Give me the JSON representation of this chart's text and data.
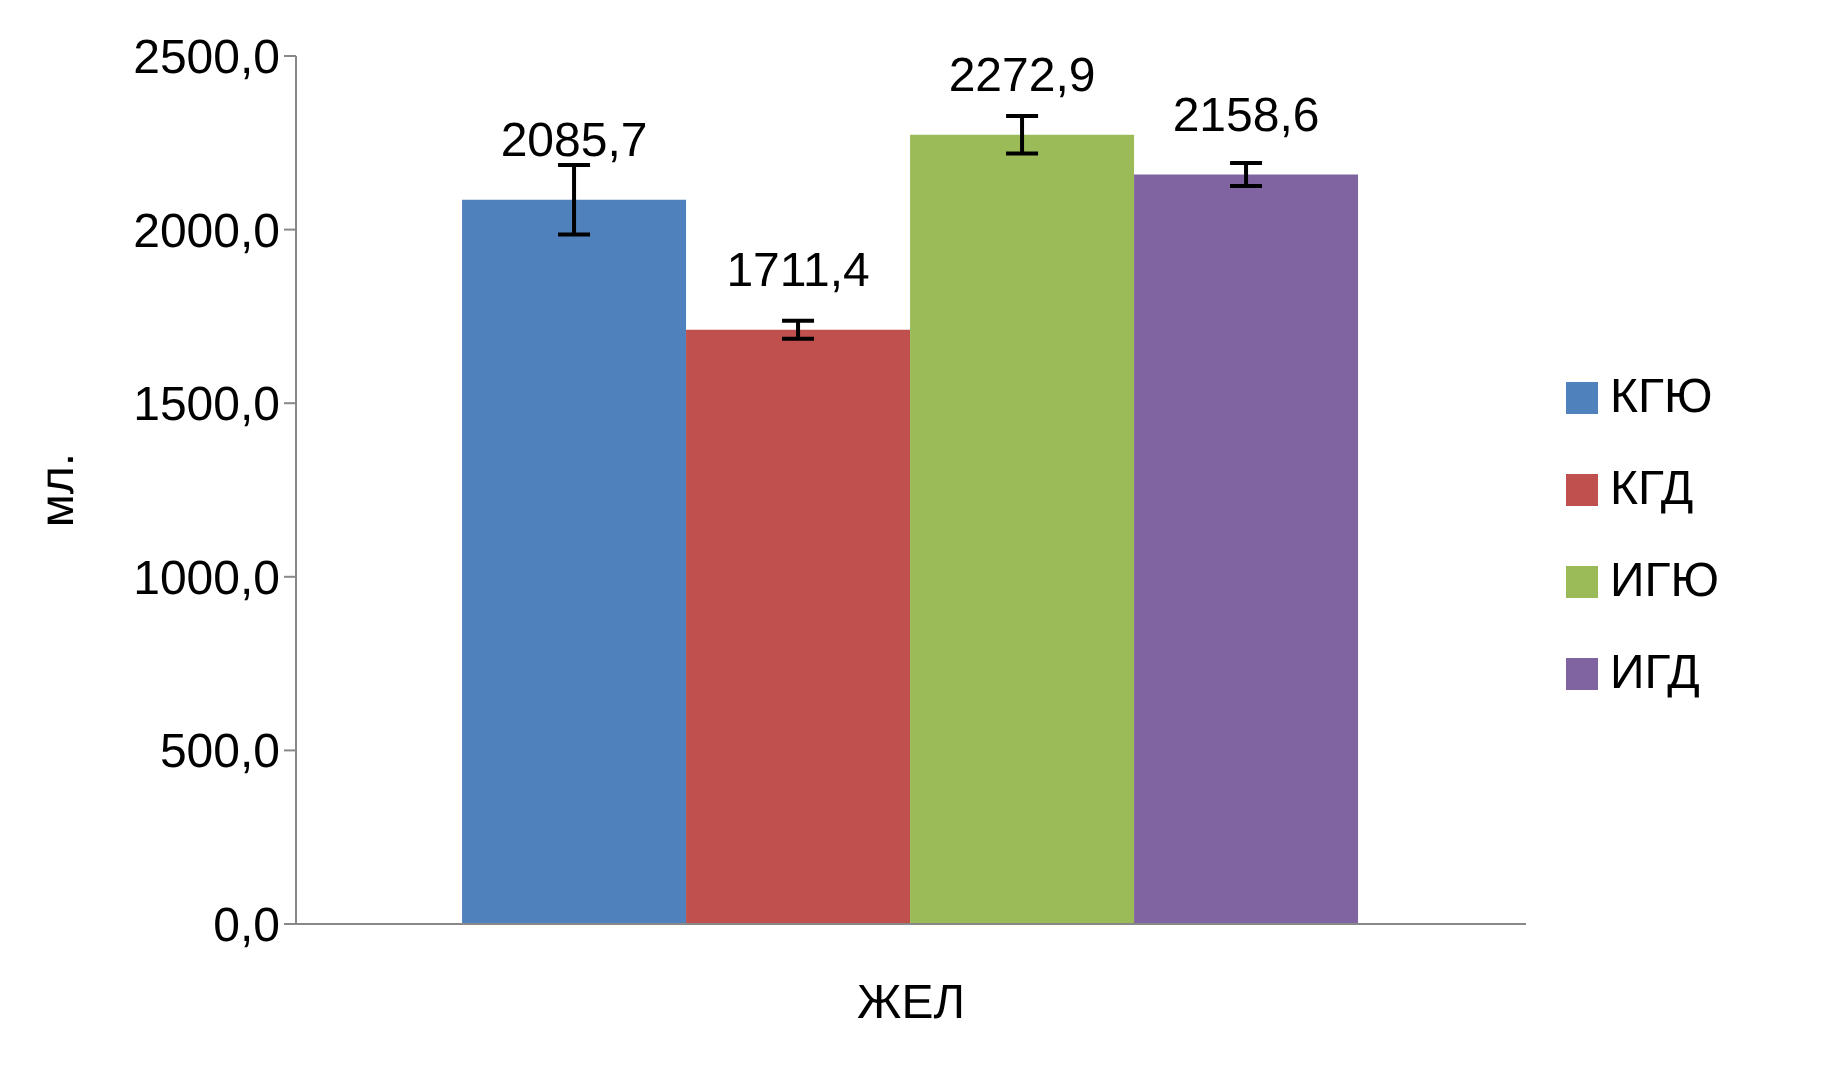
{
  "chart_data": {
    "type": "bar",
    "ylabel": "мл.",
    "categories": [
      "ЖЕЛ"
    ],
    "series": [
      {
        "name": "КГЮ",
        "color": "#4f81bd",
        "values": [
          2085.7
        ],
        "value_labels": [
          "2085,7"
        ],
        "errors": [
          100
        ]
      },
      {
        "name": "КГД",
        "color": "#c0504d",
        "values": [
          1711.4
        ],
        "value_labels": [
          "1711,4"
        ],
        "errors": [
          26
        ]
      },
      {
        "name": "ИГЮ",
        "color": "#9bbb59",
        "values": [
          2272.9
        ],
        "value_labels": [
          "2272,9"
        ],
        "errors": [
          54
        ]
      },
      {
        "name": "ИГД",
        "color": "#8064a2",
        "values": [
          2158.6
        ],
        "value_labels": [
          "2158,6"
        ],
        "errors": [
          33
        ]
      }
    ],
    "ylim": [
      0,
      2500
    ],
    "yticks": [
      {
        "value": 0,
        "label": "0,0"
      },
      {
        "value": 500,
        "label": "500,0"
      },
      {
        "value": 1000,
        "label": "1000,0"
      },
      {
        "value": 1500,
        "label": "1500,0"
      },
      {
        "value": 2000,
        "label": "2000,0"
      },
      {
        "value": 2500,
        "label": "2500,0"
      }
    ],
    "legend": "right",
    "grid": false
  }
}
